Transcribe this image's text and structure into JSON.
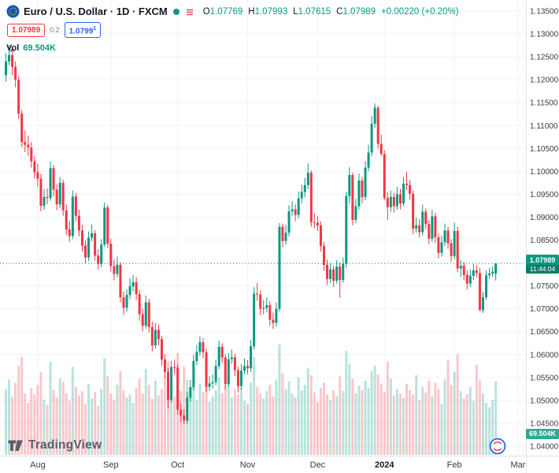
{
  "header": {
    "symbol_title": "Euro / U.S. Dollar · 1D · FXCM",
    "ohlc": {
      "o_label": "O",
      "o_value": "1.07769",
      "h_label": "H",
      "h_value": "1.07993",
      "l_label": "L",
      "l_value": "1.07615",
      "c_label": "C",
      "c_value": "1.07989",
      "change": "+0.00220 (+0.20%)"
    },
    "bid": "1.07989",
    "spread": "0.2",
    "ask": "1.0799",
    "ask_sup": "1",
    "volume": {
      "label": "Vol",
      "value": "69.504K"
    }
  },
  "price_label": {
    "price": "1.07989",
    "countdown": "11:44:04"
  },
  "volume_axis_label": "69.504K",
  "logo": {
    "text": "TradingView"
  },
  "colors": {
    "up": "#089981",
    "down": "#f23645",
    "bid": "#f23645",
    "ask": "#2962ff",
    "grid": "#f0f3fa",
    "axis_text": "#363a45",
    "label_bg": "#089981"
  },
  "chart_data": {
    "type": "candlestick",
    "title": "Euro / U.S. Dollar",
    "timeframe": "1D",
    "venue": "FXCM",
    "last_price": 1.07989,
    "countdown": "11:44:04",
    "last_volume_k": 69.504,
    "volumes_unit": "K",
    "y_axis": {
      "min": 1.04,
      "max": 1.135,
      "tick_step": 0.005
    },
    "y_ticks": [
      "1.13500",
      "1.13000",
      "1.12500",
      "1.12000",
      "1.11500",
      "1.11000",
      "1.10500",
      "1.10000",
      "1.09500",
      "1.09000",
      "1.08500",
      "1.08000",
      "1.07500",
      "1.07000",
      "1.06500",
      "1.06000",
      "1.05500",
      "1.05000",
      "1.04500",
      "1.04000"
    ],
    "x_axis_labels": [
      {
        "text": "Aug",
        "candle_index": 10
      },
      {
        "text": "Sep",
        "candle_index": 33
      },
      {
        "text": "Oct",
        "candle_index": 54
      },
      {
        "text": "Nov",
        "candle_index": 76
      },
      {
        "text": "Dec",
        "candle_index": 98
      },
      {
        "text": "2024",
        "candle_index": 119
      },
      {
        "text": "Feb",
        "candle_index": 141
      },
      {
        "text": "Mar",
        "candle_index": 161
      }
    ],
    "candles_ohlc": [
      [
        1.121,
        1.1258,
        1.1196,
        1.124
      ],
      [
        1.124,
        1.1276,
        1.1232,
        1.1254
      ],
      [
        1.1254,
        1.1262,
        1.121,
        1.1228
      ],
      [
        1.1228,
        1.124,
        1.1184,
        1.12
      ],
      [
        1.12,
        1.1208,
        1.1115,
        1.1126
      ],
      [
        1.1126,
        1.1134,
        1.1053,
        1.1064
      ],
      [
        1.1064,
        1.1089,
        1.1042,
        1.1058
      ],
      [
        1.1058,
        1.1078,
        1.1034,
        1.1052
      ],
      [
        1.1052,
        1.1064,
        1.1008,
        1.1022
      ],
      [
        1.1022,
        1.1033,
        1.0985,
        1.0998
      ],
      [
        1.0998,
        1.1017,
        1.0966,
        1.0984
      ],
      [
        1.0984,
        1.0995,
        1.0913,
        1.0925
      ],
      [
        1.0925,
        1.0961,
        1.0916,
        1.0944
      ],
      [
        1.0944,
        1.0963,
        1.0928,
        1.0942
      ],
      [
        1.0942,
        1.1021,
        1.0936,
        1.1007
      ],
      [
        1.1007,
        1.1014,
        1.0946,
        1.096
      ],
      [
        1.096,
        1.0972,
        1.0915,
        1.0928
      ],
      [
        1.0928,
        1.0988,
        1.092,
        1.0975
      ],
      [
        1.0975,
        1.0982,
        1.0903,
        1.0915
      ],
      [
        1.0915,
        1.0928,
        1.0861,
        1.0873
      ],
      [
        1.0873,
        1.0892,
        1.0846,
        1.0859
      ],
      [
        1.0859,
        1.0958,
        1.0852,
        1.0945
      ],
      [
        1.0945,
        1.0953,
        1.0891,
        1.0903
      ],
      [
        1.0903,
        1.0916,
        1.0858,
        1.0871
      ],
      [
        1.0871,
        1.0884,
        1.0825,
        1.0838
      ],
      [
        1.0838,
        1.0849,
        1.0798,
        1.0812
      ],
      [
        1.0812,
        1.0869,
        1.0804,
        1.0855
      ],
      [
        1.0855,
        1.0884,
        1.0847,
        1.0865
      ],
      [
        1.0865,
        1.0872,
        1.0805,
        1.0816
      ],
      [
        1.0816,
        1.083,
        1.0786,
        1.0798
      ],
      [
        1.0798,
        1.0852,
        1.079,
        1.084
      ],
      [
        1.084,
        1.0932,
        1.0835,
        1.0921
      ],
      [
        1.0921,
        1.0927,
        1.0832,
        1.0842
      ],
      [
        1.0842,
        1.0853,
        1.0781,
        1.0793
      ],
      [
        1.0793,
        1.0808,
        1.0762,
        1.0776
      ],
      [
        1.0776,
        1.0814,
        1.0769,
        1.0796
      ],
      [
        1.0796,
        1.0801,
        1.0714,
        1.0725
      ],
      [
        1.0725,
        1.0738,
        1.0686,
        1.0702
      ],
      [
        1.0702,
        1.0742,
        1.0694,
        1.073
      ],
      [
        1.073,
        1.0767,
        1.0721,
        1.0749
      ],
      [
        1.0749,
        1.0774,
        1.0738,
        1.0758
      ],
      [
        1.0758,
        1.0769,
        1.0719,
        1.0732
      ],
      [
        1.0732,
        1.0741,
        1.0674,
        1.0688
      ],
      [
        1.0688,
        1.07,
        1.0651,
        1.0663
      ],
      [
        1.0663,
        1.0729,
        1.0656,
        1.0714
      ],
      [
        1.0714,
        1.0722,
        1.0648,
        1.066
      ],
      [
        1.066,
        1.0672,
        1.0607,
        1.062
      ],
      [
        1.062,
        1.0669,
        1.0613,
        1.0654
      ],
      [
        1.0654,
        1.0666,
        1.062,
        1.0634
      ],
      [
        1.0634,
        1.0641,
        1.0576,
        1.0589
      ],
      [
        1.0589,
        1.0601,
        1.0549,
        1.0562
      ],
      [
        1.0562,
        1.057,
        1.0482,
        1.0501
      ],
      [
        1.0501,
        1.0586,
        1.0495,
        1.0573
      ],
      [
        1.0573,
        1.0589,
        1.0557,
        1.0571
      ],
      [
        1.0571,
        1.0578,
        1.0469,
        1.048
      ],
      [
        1.048,
        1.0494,
        1.0453,
        1.0467
      ],
      [
        1.0467,
        1.0481,
        1.0448,
        1.0456
      ],
      [
        1.0456,
        1.0519,
        1.045,
        1.0506
      ],
      [
        1.0506,
        1.0544,
        1.0498,
        1.0529
      ],
      [
        1.0529,
        1.06,
        1.0522,
        1.0586
      ],
      [
        1.0586,
        1.062,
        1.0577,
        1.0606
      ],
      [
        1.0606,
        1.064,
        1.0597,
        1.0627
      ],
      [
        1.0627,
        1.0636,
        1.0592,
        1.0605
      ],
      [
        1.0605,
        1.0613,
        1.0518,
        1.053
      ],
      [
        1.053,
        1.0553,
        1.0521,
        1.0537
      ],
      [
        1.0537,
        1.0557,
        1.0526,
        1.054
      ],
      [
        1.054,
        1.0589,
        1.0533,
        1.0575
      ],
      [
        1.0575,
        1.063,
        1.0568,
        1.0617
      ],
      [
        1.0617,
        1.0625,
        1.0582,
        1.0594
      ],
      [
        1.0594,
        1.0601,
        1.0524,
        1.0536
      ],
      [
        1.0536,
        1.0603,
        1.053,
        1.059
      ],
      [
        1.059,
        1.0611,
        1.058,
        1.0594
      ],
      [
        1.0594,
        1.0602,
        1.0553,
        1.0566
      ],
      [
        1.0566,
        1.0574,
        1.0517,
        1.0531
      ],
      [
        1.0531,
        1.0579,
        1.0524,
        1.0565
      ],
      [
        1.0565,
        1.0592,
        1.0557,
        1.0575
      ],
      [
        1.0575,
        1.0588,
        1.0557,
        1.057
      ],
      [
        1.057,
        1.0632,
        1.0562,
        1.0618
      ],
      [
        1.0618,
        1.0747,
        1.0611,
        1.0733
      ],
      [
        1.0733,
        1.0756,
        1.0717,
        1.0731
      ],
      [
        1.0731,
        1.074,
        1.0686,
        1.07
      ],
      [
        1.07,
        1.0719,
        1.0688,
        1.0702
      ],
      [
        1.0702,
        1.0725,
        1.0692,
        1.0708
      ],
      [
        1.0708,
        1.0716,
        1.0663,
        1.0676
      ],
      [
        1.0676,
        1.0692,
        1.0656,
        1.0669
      ],
      [
        1.0669,
        1.0714,
        1.0661,
        1.07
      ],
      [
        1.07,
        1.0887,
        1.0694,
        1.0879
      ],
      [
        1.0879,
        1.0886,
        1.0834,
        1.0848
      ],
      [
        1.0848,
        1.0883,
        1.084,
        1.0866
      ],
      [
        1.0866,
        1.0926,
        1.0858,
        1.0913
      ],
      [
        1.0913,
        1.0935,
        1.0902,
        1.0917
      ],
      [
        1.0917,
        1.0928,
        1.0891,
        1.0905
      ],
      [
        1.0905,
        1.0956,
        1.0897,
        1.0941
      ],
      [
        1.0941,
        1.0971,
        1.093,
        1.0955
      ],
      [
        1.0955,
        1.0986,
        1.0943,
        1.097
      ],
      [
        1.097,
        1.1017,
        1.0961,
        1.0997
      ],
      [
        1.0997,
        1.1002,
        1.0879,
        1.0889
      ],
      [
        1.0889,
        1.0908,
        1.0876,
        1.0888
      ],
      [
        1.0888,
        1.0902,
        1.087,
        1.0882
      ],
      [
        1.0882,
        1.0891,
        1.0825,
        1.0837
      ],
      [
        1.0837,
        1.0846,
        1.0783,
        1.0796
      ],
      [
        1.0796,
        1.0808,
        1.0752,
        1.0765
      ],
      [
        1.0765,
        1.0799,
        1.0756,
        1.0786
      ],
      [
        1.0786,
        1.0794,
        1.0748,
        1.0761
      ],
      [
        1.0761,
        1.0806,
        1.0755,
        1.0792
      ],
      [
        1.0792,
        1.0801,
        1.0724,
        1.0763
      ],
      [
        1.0763,
        1.0812,
        1.0757,
        1.0798
      ],
      [
        1.0798,
        1.0955,
        1.079,
        1.0946
      ],
      [
        1.0946,
        1.1009,
        1.093,
        1.0992
      ],
      [
        1.0992,
        1.0997,
        1.0882,
        1.0894
      ],
      [
        1.0894,
        1.094,
        1.0887,
        1.0924
      ],
      [
        1.0924,
        1.0995,
        1.0917,
        1.098
      ],
      [
        1.098,
        1.0988,
        1.093,
        1.0944
      ],
      [
        1.0944,
        1.1022,
        1.0937,
        1.1008
      ],
      [
        1.1008,
        1.1058,
        1.1,
        1.1041
      ],
      [
        1.1041,
        1.1121,
        1.1033,
        1.1104
      ],
      [
        1.1104,
        1.1148,
        1.1095,
        1.1139
      ],
      [
        1.1139,
        1.1143,
        1.105,
        1.106
      ],
      [
        1.106,
        1.108,
        1.1033,
        1.1038
      ],
      [
        1.1038,
        1.1046,
        1.0937,
        1.0942
      ],
      [
        1.0942,
        1.0955,
        1.0893,
        1.0922
      ],
      [
        1.0922,
        1.0958,
        1.0912,
        1.0944
      ],
      [
        1.0944,
        1.0953,
        1.091,
        1.0924
      ],
      [
        1.0924,
        1.0966,
        1.0916,
        1.095
      ],
      [
        1.095,
        1.0962,
        1.0917,
        1.093
      ],
      [
        1.093,
        1.0987,
        1.0924,
        1.0973
      ],
      [
        1.0973,
        1.0999,
        1.0959,
        1.097
      ],
      [
        1.097,
        1.0982,
        1.0938,
        1.0951
      ],
      [
        1.0951,
        1.0958,
        1.0863,
        1.0875
      ],
      [
        1.0875,
        1.0899,
        1.0866,
        1.0882
      ],
      [
        1.0882,
        1.0896,
        1.0855,
        1.0867
      ],
      [
        1.0867,
        1.0927,
        1.086,
        1.0912
      ],
      [
        1.0912,
        1.0919,
        1.0873,
        1.0885
      ],
      [
        1.0885,
        1.0893,
        1.0841,
        1.0853
      ],
      [
        1.0853,
        1.0916,
        1.0846,
        1.0902
      ],
      [
        1.0902,
        1.091,
        1.0844,
        1.0856
      ],
      [
        1.0856,
        1.0864,
        1.081,
        1.0822
      ],
      [
        1.0822,
        1.0859,
        1.0814,
        1.0845
      ],
      [
        1.0845,
        1.0886,
        1.0837,
        1.0871
      ],
      [
        1.0871,
        1.0879,
        1.0831,
        1.0843
      ],
      [
        1.0843,
        1.0852,
        1.0803,
        1.0815
      ],
      [
        1.0815,
        1.0888,
        1.0808,
        1.087
      ],
      [
        1.087,
        1.0879,
        1.078,
        1.0788
      ],
      [
        1.0788,
        1.0806,
        1.077,
        1.0794
      ],
      [
        1.0794,
        1.0802,
        1.0762,
        1.0774
      ],
      [
        1.0774,
        1.0784,
        1.0742,
        1.0755
      ],
      [
        1.0755,
        1.0786,
        1.0748,
        1.0772
      ],
      [
        1.0772,
        1.0798,
        1.0763,
        1.0784
      ],
      [
        1.0784,
        1.0795,
        1.0768,
        1.0778
      ],
      [
        1.0778,
        1.079,
        1.0695,
        1.0697
      ],
      [
        1.0697,
        1.0737,
        1.0691,
        1.0725
      ],
      [
        1.0725,
        1.0784,
        1.0719,
        1.0773
      ],
      [
        1.0773,
        1.0789,
        1.0765,
        1.0777
      ],
      [
        1.0777,
        1.0792,
        1.077,
        1.0781
      ],
      [
        1.07769,
        1.07993,
        1.07615,
        1.07989
      ]
    ],
    "volumes_k": [
      62,
      71,
      55,
      68,
      84,
      92,
      58,
      49,
      63,
      57,
      66,
      78,
      52,
      47,
      88,
      61,
      54,
      72,
      69,
      58,
      51,
      83,
      64,
      56,
      60,
      48,
      67,
      53,
      59,
      46,
      62,
      91,
      74,
      58,
      52,
      66,
      79,
      61,
      54,
      57,
      49,
      63,
      72,
      58,
      81,
      66,
      53,
      70,
      56,
      62,
      74,
      88,
      69,
      55,
      96,
      60,
      83,
      71,
      58,
      64,
      52,
      67,
      59,
      76,
      50,
      55,
      61,
      73,
      58,
      66,
      70,
      54,
      62,
      57,
      63,
      51,
      48,
      68,
      92,
      64,
      58,
      53,
      60,
      66,
      55,
      71,
      104,
      77,
      62,
      69,
      58,
      54,
      73,
      61,
      66,
      82,
      75,
      59,
      50,
      63,
      68,
      57,
      52,
      61,
      55,
      74,
      60,
      98,
      86,
      72,
      58,
      65,
      61,
      70,
      63,
      79,
      84,
      76,
      67,
      59,
      88,
      72,
      56,
      62,
      58,
      54,
      67,
      61,
      57,
      75,
      52,
      64,
      59,
      70,
      55,
      68,
      62,
      48,
      71,
      89,
      66,
      78,
      95,
      60,
      53,
      57,
      64,
      51,
      85,
      70,
      58,
      49,
      45,
      52,
      69.504
    ]
  }
}
